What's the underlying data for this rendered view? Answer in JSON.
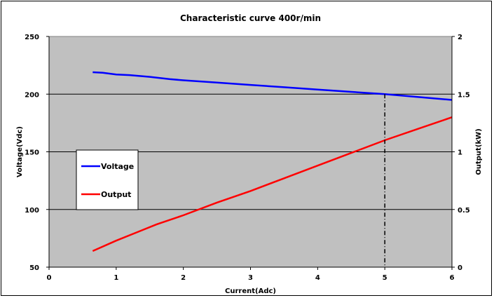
{
  "chart_data": {
    "type": "line",
    "title": "Characteristic curve  400r/min",
    "xlabel": "Current(Adc)",
    "ylabel": "Voltage(Vdc)",
    "y2label": "Output(kW)",
    "xlim": [
      0,
      6
    ],
    "ylim": [
      50,
      250
    ],
    "y2lim": [
      0,
      2
    ],
    "x_ticks": [
      "0",
      "1",
      "2",
      "3",
      "4",
      "5",
      "6"
    ],
    "y_ticks": [
      "50",
      "100",
      "150",
      "200",
      "250"
    ],
    "y2_ticks": [
      "0",
      "0.5",
      "1",
      "1.5",
      "2"
    ],
    "grid": "horizontal",
    "plot_background": "#c0c0c0",
    "legend_position": "left-middle",
    "reference_line_x": 5,
    "series": [
      {
        "name": "Voltage",
        "axis": "left",
        "color": "#0000ff",
        "x": [
          0.65,
          0.8,
          1.0,
          1.2,
          1.5,
          1.8,
          2.0,
          2.5,
          3.0,
          3.5,
          4.0,
          4.5,
          5.0,
          5.5,
          6.0
        ],
        "y": [
          219,
          218.5,
          217,
          216.5,
          215,
          213,
          212,
          210,
          208,
          206,
          204,
          202,
          200,
          197.5,
          195
        ]
      },
      {
        "name": "Output",
        "axis": "right",
        "color": "#ff0000",
        "x": [
          0.65,
          1.0,
          1.3,
          1.6,
          2.0,
          2.5,
          3.0,
          3.5,
          4.0,
          4.5,
          5.0,
          5.5,
          6.0
        ],
        "y": [
          0.14,
          0.23,
          0.3,
          0.37,
          0.45,
          0.56,
          0.66,
          0.77,
          0.88,
          0.99,
          1.1,
          1.2,
          1.3
        ]
      }
    ]
  }
}
